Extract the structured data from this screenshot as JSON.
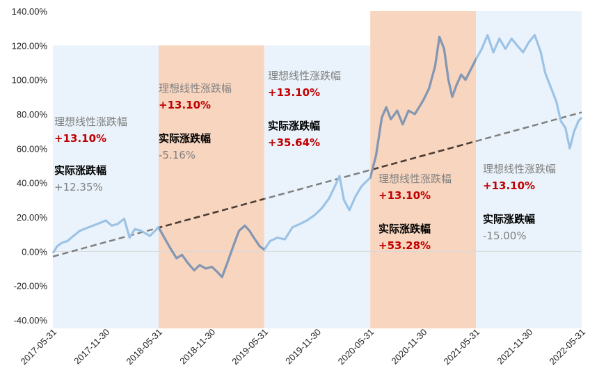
{
  "chart_data": {
    "type": "line",
    "title": "",
    "xlabel": "",
    "ylabel": "",
    "ylim": [
      -40,
      140
    ],
    "y_ticks": [
      -40,
      -20,
      0,
      20,
      40,
      60,
      80,
      100,
      120,
      140
    ],
    "y_tick_labels": [
      "-40.00%",
      "-20.00%",
      "0.00%",
      "20.00%",
      "40.00%",
      "60.00%",
      "80.00%",
      "100.00%",
      "120.00%",
      "140.00%"
    ],
    "x_range": [
      "2017-05-31",
      "2022-05-31"
    ],
    "x_tick_labels": [
      "2017-05-31",
      "2017-11-30",
      "2018-05-31",
      "2018-11-30",
      "2019-05-31",
      "2019-11-30",
      "2020-05-31",
      "2020-11-30",
      "2021-05-31",
      "2021-11-30",
      "2022-05-31"
    ],
    "grid": false,
    "colors": {
      "actual_line": "#9cc3e6",
      "actual_line_orange_region": "#8496b0",
      "trend_line": "#7f7f7f",
      "trend_line_dark": "#4d3b30",
      "band_blue": "#eaf3fb",
      "band_orange": "#f8d5bf",
      "title_text": "#808080",
      "value_red": "#c00000",
      "value_gray": "#808080",
      "label_black": "#000000"
    },
    "bands": [
      {
        "start": "2017-05-31",
        "end": "2018-05-31",
        "color": "blue",
        "top": 120
      },
      {
        "start": "2018-05-31",
        "end": "2019-05-31",
        "color": "orange",
        "top": 120
      },
      {
        "start": "2019-05-31",
        "end": "2020-05-31",
        "color": "blue",
        "top": 120
      },
      {
        "start": "2020-05-31",
        "end": "2021-05-31",
        "color": "orange",
        "top": 140
      },
      {
        "start": "2021-05-31",
        "end": "2022-05-31",
        "color": "blue",
        "top": 140
      }
    ],
    "trend_line": {
      "start": [
        "2017-05-31",
        -3
      ],
      "end": [
        "2022-05-31",
        81
      ]
    },
    "series": [
      {
        "values": [
          [
            "2017-05-31",
            -1
          ],
          [
            "2017-06-15",
            3
          ],
          [
            "2017-07-01",
            5
          ],
          [
            "2017-07-20",
            6
          ],
          [
            "2017-08-10",
            9
          ],
          [
            "2017-09-01",
            12
          ],
          [
            "2017-10-01",
            14
          ],
          [
            "2017-11-01",
            16
          ],
          [
            "2017-11-30",
            18
          ],
          [
            "2017-12-20",
            15
          ],
          [
            "2018-01-10",
            16
          ],
          [
            "2018-02-01",
            19
          ],
          [
            "2018-02-20",
            8
          ],
          [
            "2018-03-10",
            13
          ],
          [
            "2018-04-01",
            12
          ],
          [
            "2018-05-01",
            9
          ],
          [
            "2018-05-31",
            14
          ],
          [
            "2018-06-20",
            8
          ],
          [
            "2018-07-10",
            2
          ],
          [
            "2018-08-01",
            -4
          ],
          [
            "2018-08-20",
            -2
          ],
          [
            "2018-09-10",
            -7
          ],
          [
            "2018-10-01",
            -11
          ],
          [
            "2018-10-20",
            -8
          ],
          [
            "2018-11-10",
            -10
          ],
          [
            "2018-12-01",
            -9
          ],
          [
            "2018-12-20",
            -12
          ],
          [
            "2019-01-05",
            -15
          ],
          [
            "2019-01-25",
            -6
          ],
          [
            "2019-02-15",
            4
          ],
          [
            "2019-03-05",
            12
          ],
          [
            "2019-03-25",
            15
          ],
          [
            "2019-04-10",
            12
          ],
          [
            "2019-04-25",
            8
          ],
          [
            "2019-05-15",
            3
          ],
          [
            "2019-05-31",
            1
          ],
          [
            "2019-06-20",
            6
          ],
          [
            "2019-07-15",
            8
          ],
          [
            "2019-08-10",
            7
          ],
          [
            "2019-09-05",
            14
          ],
          [
            "2019-10-01",
            16
          ],
          [
            "2019-10-25",
            18
          ],
          [
            "2019-11-20",
            21
          ],
          [
            "2019-12-15",
            25
          ],
          [
            "2020-01-10",
            31
          ],
          [
            "2020-01-30",
            38
          ],
          [
            "2020-02-15",
            44
          ],
          [
            "2020-03-01",
            30
          ],
          [
            "2020-03-20",
            24
          ],
          [
            "2020-04-10",
            32
          ],
          [
            "2020-05-01",
            38
          ],
          [
            "2020-05-31",
            43
          ],
          [
            "2020-06-20",
            56
          ],
          [
            "2020-07-10",
            78
          ],
          [
            "2020-07-25",
            84
          ],
          [
            "2020-08-10",
            77
          ],
          [
            "2020-09-01",
            82
          ],
          [
            "2020-09-20",
            74
          ],
          [
            "2020-10-10",
            82
          ],
          [
            "2020-11-01",
            80
          ],
          [
            "2020-11-30",
            88
          ],
          [
            "2020-12-20",
            95
          ],
          [
            "2021-01-10",
            108
          ],
          [
            "2021-01-25",
            125
          ],
          [
            "2021-02-10",
            118
          ],
          [
            "2021-02-25",
            100
          ],
          [
            "2021-03-10",
            90
          ],
          [
            "2021-03-25",
            97
          ],
          [
            "2021-04-10",
            103
          ],
          [
            "2021-04-25",
            100
          ],
          [
            "2021-05-31",
            112
          ],
          [
            "2021-06-20",
            118
          ],
          [
            "2021-07-10",
            126
          ],
          [
            "2021-07-30",
            116
          ],
          [
            "2021-08-20",
            124
          ],
          [
            "2021-09-10",
            118
          ],
          [
            "2021-10-01",
            124
          ],
          [
            "2021-10-20",
            120
          ],
          [
            "2021-11-10",
            116
          ],
          [
            "2021-11-30",
            122
          ],
          [
            "2021-12-20",
            126
          ],
          [
            "2022-01-10",
            116
          ],
          [
            "2022-01-25",
            104
          ],
          [
            "2022-02-15",
            95
          ],
          [
            "2022-03-05",
            87
          ],
          [
            "2022-03-20",
            76
          ],
          [
            "2022-04-05",
            72
          ],
          [
            "2022-04-20",
            60
          ],
          [
            "2022-05-05",
            70
          ],
          [
            "2022-05-20",
            76
          ],
          [
            "2022-05-31",
            78
          ]
        ]
      }
    ],
    "annotations": [
      {
        "title": "理想线性涨跌幅",
        "ideal": "+13.10%",
        "actual_title": "实际涨跌幅",
        "actual": "+12.35%",
        "actual_color": "gray"
      },
      {
        "title": "理想线性涨跌幅",
        "ideal": "+13.10%",
        "actual_title": "实际涨跌幅",
        "actual": "-5.16%",
        "actual_color": "gray"
      },
      {
        "title": "理想线性涨跌幅",
        "ideal": "+13.10%",
        "actual_title": "实际涨跌幅",
        "actual": "+35.64%",
        "actual_color": "red"
      },
      {
        "title": "理想线性涨跌幅",
        "ideal": "+13.10%",
        "actual_title": "实际涨跌幅",
        "actual": "+53.28%",
        "actual_color": "red"
      },
      {
        "title": "理想线性涨跌幅",
        "ideal": "+13.10%",
        "actual_title": "实际涨跌幅",
        "actual": "-15.00%",
        "actual_color": "gray"
      }
    ]
  }
}
